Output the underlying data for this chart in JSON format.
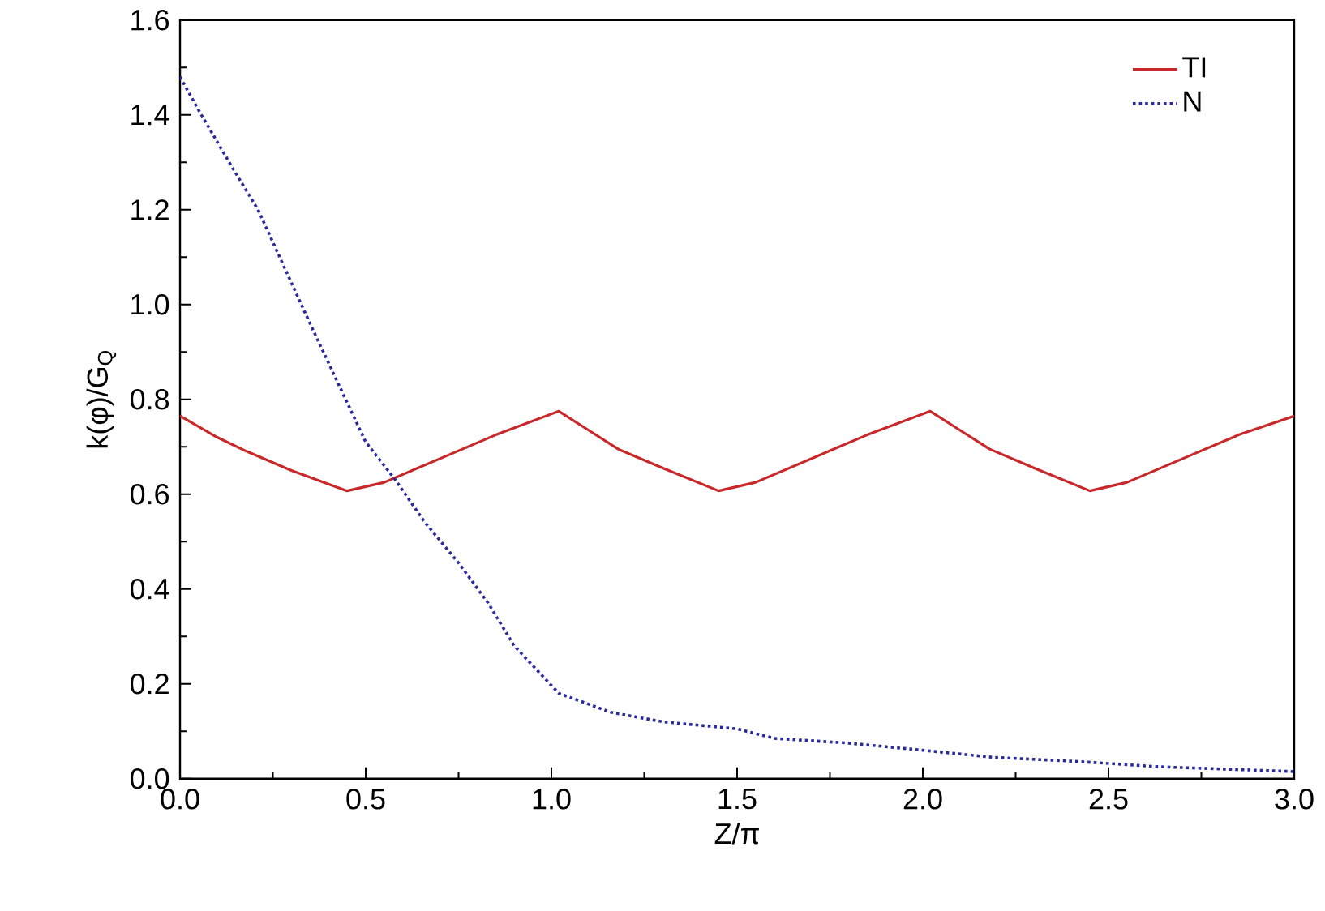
{
  "chart_data": {
    "type": "line",
    "xlabel": "Z/π",
    "ylabel": "k(φ)/G$_{Q}$",
    "xlim": [
      0,
      3.0
    ],
    "ylim": [
      0,
      1.6
    ],
    "xticks": [
      {
        "value": 0,
        "label": "0.0"
      },
      0.5,
      {
        "value": 1,
        "label": "1.0"
      },
      1.5,
      {
        "value": 2,
        "label": "2.0"
      },
      2.5,
      {
        "value": 3,
        "label": "3.0"
      }
    ],
    "yticks": [
      {
        "value": 0,
        "label": "0.0"
      },
      0.2,
      0.4,
      0.6,
      0.8,
      {
        "value": 1,
        "label": "1.0"
      },
      1.2,
      1.4,
      1.6
    ],
    "legend": "top right",
    "series": [
      {
        "name": "TI",
        "color": "#c8282a",
        "line_style": "solid",
        "x": [
          0,
          0.1,
          0.18,
          0.3,
          0.45,
          0.55,
          0.7,
          0.85,
          1.02,
          1.1,
          1.18,
          1.3,
          1.45,
          1.55,
          1.7,
          1.85,
          2.02,
          2.1,
          2.18,
          2.3,
          2.45,
          2.55,
          2.7,
          2.85,
          3.0
        ],
        "values": [
          0.765,
          0.72,
          0.69,
          0.65,
          0.607,
          0.625,
          0.675,
          0.725,
          0.775,
          0.735,
          0.695,
          0.655,
          0.607,
          0.625,
          0.675,
          0.725,
          0.775,
          0.735,
          0.695,
          0.655,
          0.607,
          0.625,
          0.675,
          0.725,
          0.765
        ]
      },
      {
        "name": "N",
        "color": "#2a2a9a",
        "line_style": "dotted",
        "x": [
          0,
          0.05,
          0.14,
          0.21,
          0.28,
          0.35,
          0.41,
          0.5,
          0.58,
          0.66,
          0.75,
          0.83,
          0.9,
          0.99,
          1.02,
          1.16,
          1.3,
          1.5,
          1.6,
          1.8,
          2.0,
          2.19,
          2.4,
          2.64,
          3.0
        ],
        "values": [
          1.48,
          1.41,
          1.29,
          1.2,
          1.08,
          0.96,
          0.86,
          0.71,
          0.63,
          0.54,
          0.455,
          0.37,
          0.28,
          0.205,
          0.18,
          0.14,
          0.12,
          0.105,
          0.085,
          0.075,
          0.06,
          0.045,
          0.037,
          0.025,
          0.015
        ]
      }
    ]
  }
}
